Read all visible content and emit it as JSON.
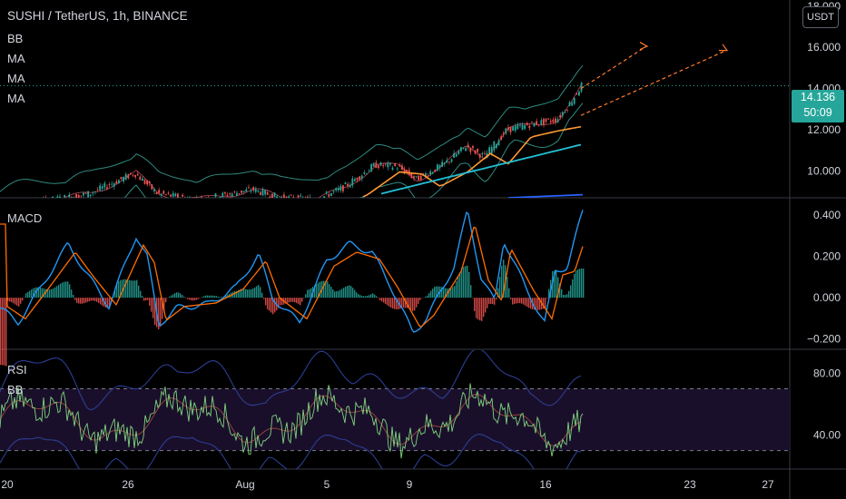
{
  "header": {
    "ticker": "SUSHI / TetherUS, 1h, BINANCE",
    "currency": "USDT"
  },
  "price_pane": {
    "indicators": [
      "BB",
      "MA",
      "MA",
      "MA"
    ],
    "last_price": "14.136",
    "countdown": "50:09"
  },
  "macd_pane": {
    "label": "MACD"
  },
  "rsi_pane": {
    "label": "RSI",
    "sub_label": "BB"
  },
  "colors": {
    "background": "#000000",
    "grid": "#1e222d",
    "candle_up": "#26a69a",
    "candle_down": "#ef5350",
    "bb_band": "#2e8b80",
    "ma_fast": "#ff9832",
    "ma_slow": "#22c1d6",
    "ma_long": "#2962ff",
    "macd_line": "#2196f3",
    "signal_line": "#ff6d00",
    "rsi_line": "#7fd37f",
    "rsi_band": "#2c3e93",
    "rsi_fill": "#1a0f2a",
    "projection": "#ff7a29"
  },
  "chart_data": {
    "type": "line",
    "x_ticks": [
      "20",
      "26",
      "Aug",
      "5",
      "9",
      "16",
      "23",
      "27"
    ],
    "panes": [
      {
        "name": "price",
        "y_ticks": [
          "18.000",
          "16.000",
          "14.000",
          "12.000",
          "10.000"
        ],
        "y_values": [
          18,
          16,
          14,
          12,
          10
        ],
        "ylim": [
          8.7,
          18.3
        ],
        "last_price": 14.136
      },
      {
        "name": "MACD",
        "y_ticks": [
          "0.400",
          "0.200",
          "0.000",
          "−0.200"
        ],
        "y_values": [
          0.4,
          0.2,
          0.0,
          -0.2
        ],
        "ylim": [
          -0.25,
          0.48
        ]
      },
      {
        "name": "RSI",
        "y_ticks": [
          "80.00",
          "40.00"
        ],
        "y_values": [
          80,
          40
        ],
        "ylim": [
          18,
          95
        ],
        "bands": [
          70,
          30
        ]
      }
    ]
  }
}
